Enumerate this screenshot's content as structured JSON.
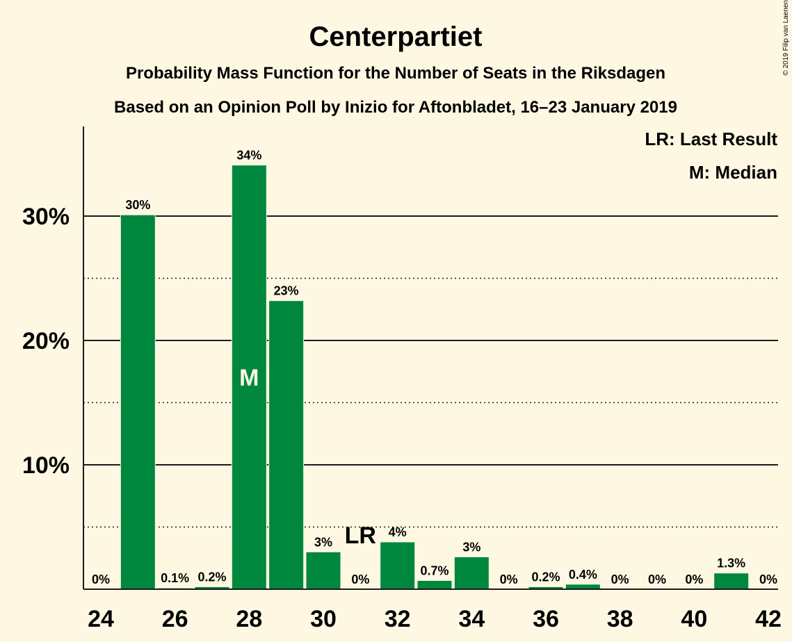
{
  "header": {
    "title": "Centerpartiet",
    "subtitle": "Probability Mass Function for the Number of Seats in the Riksdagen",
    "subtitle2": "Based on an Opinion Poll by Inizio for Aftonbladet, 16–23 January 2019",
    "copyright": "© 2019 Filip van Laenen"
  },
  "legend": {
    "last_result": "LR: Last Result",
    "median": "M: Median"
  },
  "colors": {
    "bar": "#00873e",
    "background": "#fef8e3",
    "text": "#1a1a1a"
  },
  "chart_data": {
    "type": "bar",
    "categories": [
      24,
      25,
      26,
      27,
      28,
      29,
      30,
      31,
      32,
      33,
      34,
      35,
      36,
      37,
      38,
      39,
      40,
      41,
      42
    ],
    "values": [
      0,
      30.1,
      0.1,
      0.2,
      34.1,
      23.2,
      3.0,
      0,
      3.8,
      0.7,
      2.6,
      0,
      0.2,
      0.4,
      0,
      0,
      0,
      1.3,
      0
    ],
    "labels": [
      "0%",
      "30%",
      "0.1%",
      "0.2%",
      "34%",
      "23%",
      "3%",
      "0%",
      "4%",
      "0.7%",
      "3%",
      "0%",
      "0.2%",
      "0.4%",
      "0%",
      "0%",
      "0%",
      "1.3%",
      "0%"
    ],
    "y_ticks": [
      {
        "value": 10,
        "label": "10%"
      },
      {
        "value": 20,
        "label": "20%"
      },
      {
        "value": 30,
        "label": "30%"
      }
    ],
    "y_minor_ticks": [
      5,
      15,
      25
    ],
    "x_ticks": [
      24,
      26,
      28,
      30,
      32,
      34,
      36,
      38,
      40,
      42
    ],
    "ylim": [
      0,
      37
    ],
    "median": {
      "seat": 28,
      "label": "M"
    },
    "last_result": {
      "seat": 31,
      "label": "LR"
    },
    "grid": true,
    "legend_position": "top-right"
  }
}
